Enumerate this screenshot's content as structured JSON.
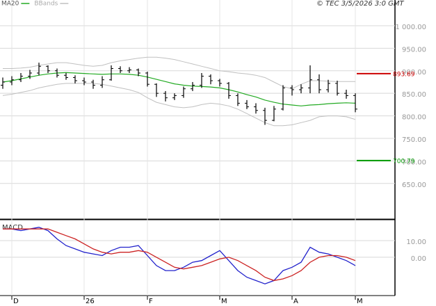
{
  "chart_data": [
    {
      "type": "ohlc",
      "source": "© TEC 3/5/2026 3:0 GMT",
      "categories": [
        null,
        "D",
        null,
        null,
        null,
        null,
        null,
        null,
        null,
        "26",
        null,
        null,
        null,
        null,
        null,
        null,
        "F",
        null,
        null,
        null,
        null,
        null,
        null,
        null,
        "M",
        null,
        null,
        null,
        null,
        null,
        null,
        null,
        "A",
        null,
        null,
        null,
        null,
        null,
        null,
        "M"
      ],
      "open": [
        868,
        875,
        880,
        888,
        895,
        910,
        900,
        890,
        885,
        878,
        875,
        868,
        880,
        905,
        900,
        902,
        895,
        870,
        850,
        840,
        845,
        860,
        868,
        888,
        878,
        872,
        845,
        828,
        820,
        812,
        790,
        815,
        862,
        858,
        862,
        880,
        858,
        872,
        850,
        845
      ],
      "high": [
        885,
        888,
        895,
        902,
        918,
        912,
        905,
        895,
        890,
        885,
        880,
        888,
        912,
        910,
        908,
        905,
        898,
        872,
        855,
        850,
        865,
        875,
        895,
        892,
        882,
        875,
        850,
        835,
        828,
        818,
        822,
        868,
        868,
        870,
        912,
        892,
        880,
        878,
        858,
        850
      ],
      "low": [
        860,
        868,
        875,
        882,
        890,
        895,
        885,
        880,
        872,
        868,
        860,
        862,
        878,
        895,
        895,
        888,
        865,
        842,
        832,
        835,
        840,
        855,
        862,
        870,
        865,
        838,
        822,
        815,
        805,
        780,
        788,
        812,
        845,
        850,
        850,
        850,
        852,
        845,
        838,
        808
      ],
      "close": [
        875,
        880,
        888,
        895,
        910,
        900,
        890,
        885,
        878,
        875,
        868,
        880,
        905,
        900,
        902,
        895,
        870,
        850,
        840,
        845,
        860,
        868,
        888,
        878,
        872,
        845,
        828,
        820,
        812,
        790,
        815,
        862,
        858,
        862,
        880,
        858,
        872,
        850,
        845,
        815
      ],
      "color": "#000000",
      "overlays": [
        {
          "name": "MA20",
          "color": "#22aa22",
          "values": [
            875,
            878,
            882,
            886,
            890,
            893,
            895,
            896,
            895,
            894,
            893,
            892,
            893,
            893,
            892,
            890,
            886,
            881,
            876,
            871,
            868,
            866,
            865,
            864,
            862,
            858,
            853,
            847,
            842,
            835,
            830,
            826,
            824,
            822,
            824,
            825,
            827,
            828,
            829,
            828
          ]
        },
        {
          "name": "BBands",
          "color": "#c0c0c0",
          "upper": [
            905,
            905,
            906,
            908,
            912,
            915,
            918,
            918,
            915,
            912,
            910,
            912,
            918,
            922,
            925,
            928,
            930,
            930,
            928,
            925,
            920,
            915,
            910,
            905,
            900,
            898,
            895,
            893,
            890,
            885,
            875,
            865,
            860,
            870,
            878,
            878,
            877,
            876,
            876,
            876
          ],
          "lower": [
            845,
            848,
            852,
            856,
            862,
            866,
            870,
            872,
            872,
            872,
            872,
            870,
            866,
            862,
            858,
            852,
            840,
            830,
            825,
            820,
            818,
            820,
            825,
            828,
            826,
            822,
            815,
            805,
            795,
            785,
            778,
            778,
            780,
            785,
            790,
            798,
            800,
            800,
            798,
            792
          ]
        }
      ],
      "levels": [
        {
          "value": 893.69,
          "color": "#cc0000"
        },
        {
          "value": 700.79,
          "color": "#009900"
        }
      ],
      "ylim": [
        571,
        1057
      ],
      "yticks": [
        {
          "value": 1000,
          "label": "1 000.00"
        },
        {
          "value": 950,
          "label": "950.00"
        },
        {
          "value": 900,
          "label": "900.00"
        },
        {
          "value": 850,
          "label": "850.00"
        },
        {
          "value": 800,
          "label": "800.00"
        },
        {
          "value": 750,
          "label": "750.00"
        },
        {
          "value": 700,
          "label": "700.00"
        },
        {
          "value": 650,
          "label": "650.00"
        }
      ],
      "grid": true
    },
    {
      "type": "line",
      "title": "MACD",
      "series": [
        {
          "color": "#2222cc",
          "values": [
            17,
            17,
            16,
            17,
            18,
            16,
            11,
            7,
            5,
            3,
            2,
            1,
            4,
            6,
            6,
            7,
            1,
            -5,
            -8,
            -8,
            -6,
            -3,
            -2,
            1,
            4,
            -2,
            -8,
            -12,
            -14,
            -16,
            -14,
            -8,
            -6,
            -3,
            6,
            3,
            2,
            0,
            -2,
            -5
          ]
        },
        {
          "color": "#cc2222",
          "values": [
            17,
            17,
            17,
            17,
            17,
            17,
            15,
            13,
            11,
            8,
            5,
            3,
            2,
            3,
            3,
            4,
            3,
            0,
            -3,
            -6,
            -7,
            -6,
            -5,
            -3,
            -1,
            0,
            -2,
            -5,
            -8,
            -12,
            -14,
            -13,
            -11,
            -8,
            -3,
            0,
            1,
            1,
            0,
            -2
          ]
        }
      ],
      "ylim": [
        -23,
        22.5
      ],
      "yticks": [
        {
          "value": 10,
          "label": "10.00"
        },
        {
          "value": 0,
          "label": "0.00"
        }
      ],
      "grid": true
    }
  ]
}
